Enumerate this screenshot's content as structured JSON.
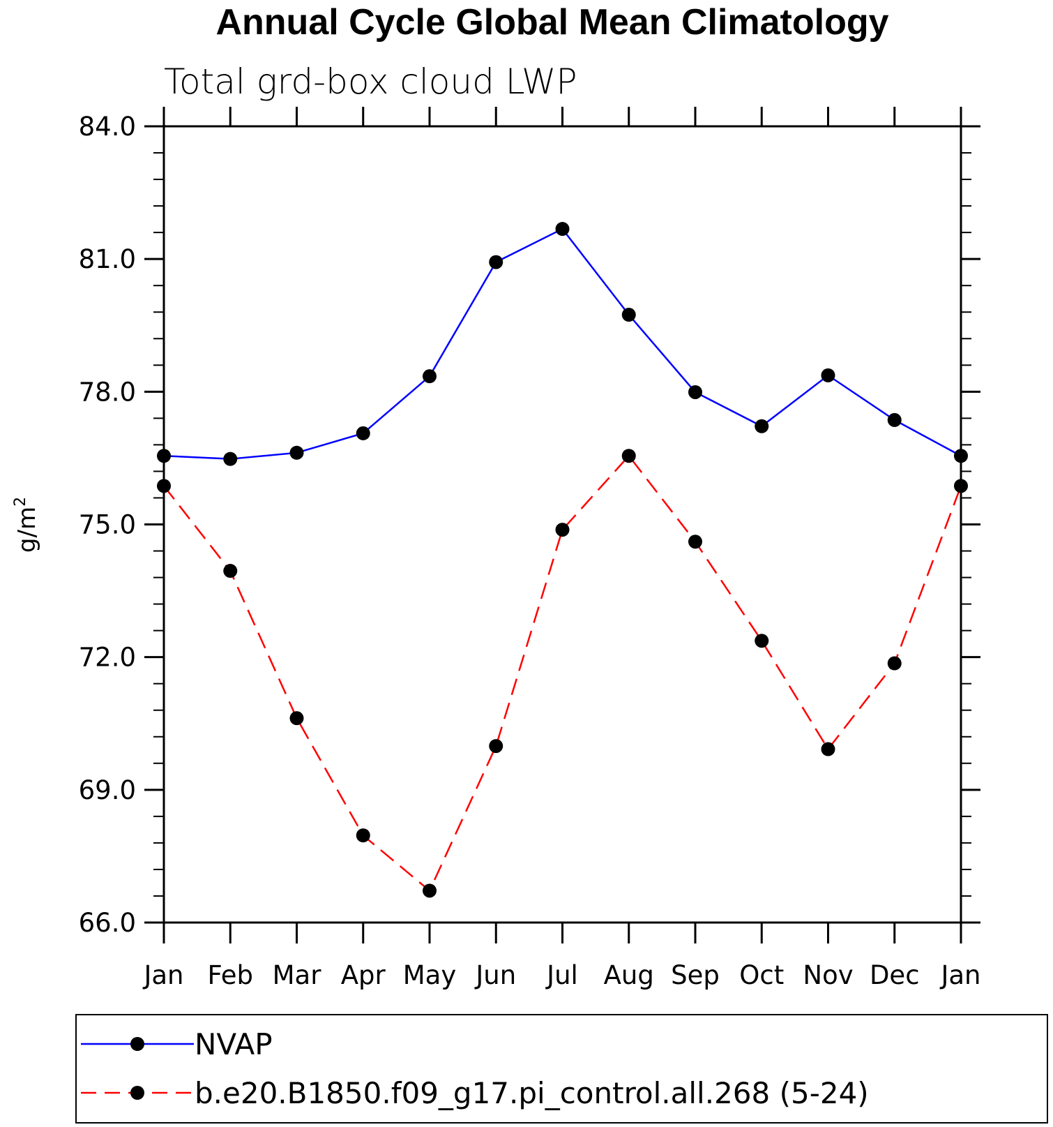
{
  "chart_data": {
    "type": "line",
    "title": "Annual Cycle Global Mean Climatology",
    "subtitle": "Total grd-box cloud LWP",
    "ylabel": "g/m",
    "ylabel_sup": "2",
    "xlabel": "",
    "categories": [
      "Jan",
      "Feb",
      "Mar",
      "Apr",
      "May",
      "Jun",
      "Jul",
      "Aug",
      "Sep",
      "Oct",
      "Nov",
      "Dec",
      "Jan"
    ],
    "ylim": [
      66.0,
      84.0
    ],
    "yticks": [
      "66.0",
      "69.0",
      "72.0",
      "75.0",
      "78.0",
      "81.0",
      "84.0"
    ],
    "series": [
      {
        "name": "NVAP",
        "color": "#0000ff",
        "dash": "solid",
        "marker": "filled-circle",
        "values": [
          76.55,
          76.48,
          76.62,
          77.06,
          78.35,
          80.93,
          81.68,
          79.74,
          77.99,
          77.22,
          78.37,
          77.36,
          76.55
        ]
      },
      {
        "name": "b.e20.B1850.f09_g17.pi_control.all.268 (5-24)",
        "color": "#ff0000",
        "dash": "dashed",
        "marker": "filled-circle",
        "values": [
          75.87,
          73.95,
          70.62,
          67.97,
          66.72,
          69.99,
          74.88,
          76.55,
          74.61,
          72.37,
          69.92,
          71.86,
          75.87
        ]
      }
    ],
    "grid": false,
    "legend_position": "bottom"
  }
}
